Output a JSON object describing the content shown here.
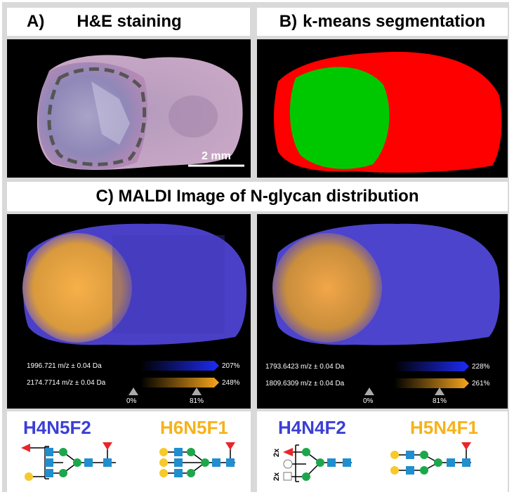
{
  "panel_a": {
    "label": "A)",
    "title": "H&E staining",
    "scale_label": "2 mm"
  },
  "panel_b": {
    "label": "B)",
    "title": "k-means segmentation"
  },
  "panel_c": {
    "title": "C) MALDI Image of N-glycan distribution",
    "left": {
      "blue_mz": "1996.721 m/z ± 0.04 Da",
      "blue_pct": "207%",
      "orange_mz": "2174.7714 m/z ± 0.04 Da",
      "orange_pct": "248%",
      "tick0": "0%",
      "tick1": "81%",
      "glycan_blue": "H4N5F2",
      "glycan_orange": "H6N5F1"
    },
    "right": {
      "blue_mz": "1793.6423 m/z ± 0.04 Da",
      "blue_pct": "228%",
      "orange_mz": "1809.6309 m/z ± 0.04 Da",
      "orange_pct": "261%",
      "tick0": "0%",
      "tick1": "81%",
      "glycan_blue": "H4N4F2",
      "glycan_orange": "H5N4F1",
      "mult1": "2x",
      "mult2": "2x"
    }
  },
  "colors": {
    "blue": "#3b3fd6",
    "orange": "#f6b21b",
    "green": "#1ca84a",
    "red": "#ee1c1c",
    "square": "#1f8fcf",
    "fucose": "#e8262b",
    "galactose": "#f7c92b"
  }
}
